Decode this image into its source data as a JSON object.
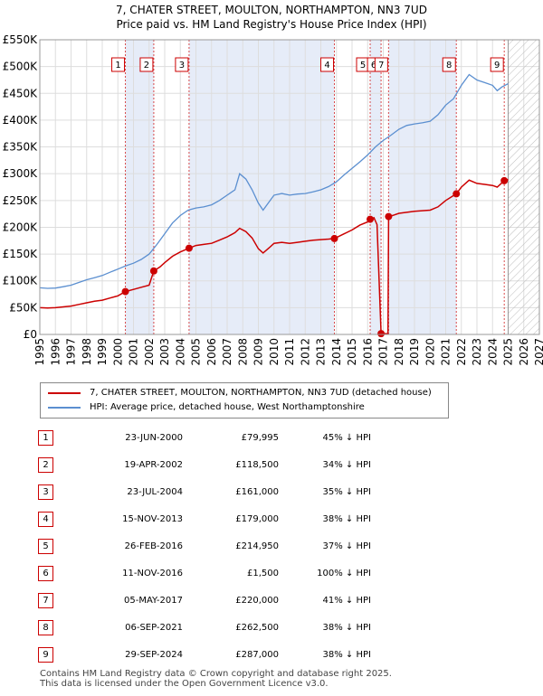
{
  "title": {
    "line1": "7, CHATER STREET, MOULTON, NORTHAMPTON, NN3 7UD",
    "line2": "Price paid vs. HM Land Registry's House Price Index (HPI)"
  },
  "colors": {
    "price": "#cc0000",
    "hpi": "#5b8fd0",
    "band": "#e6ecf8",
    "grid": "#dddddd"
  },
  "chart_data": {
    "type": "line",
    "ylim": [
      0,
      550000
    ],
    "xlim": [
      1995,
      2027
    ],
    "y_ticks": [
      0,
      50000,
      100000,
      150000,
      200000,
      250000,
      300000,
      350000,
      400000,
      450000,
      500000,
      550000
    ],
    "y_tick_labels": [
      "£0",
      "£50K",
      "£100K",
      "£150K",
      "£200K",
      "£250K",
      "£300K",
      "£350K",
      "£400K",
      "£450K",
      "£500K",
      "£550K"
    ],
    "x_ticks": [
      1995,
      1996,
      1997,
      1998,
      1999,
      2000,
      2001,
      2002,
      2003,
      2004,
      2005,
      2006,
      2007,
      2008,
      2009,
      2010,
      2011,
      2012,
      2013,
      2014,
      2015,
      2016,
      2017,
      2018,
      2019,
      2020,
      2021,
      2022,
      2023,
      2024,
      2025,
      2026,
      2027
    ],
    "projection_start": 2025.0,
    "shaded_periods": [
      [
        2000.48,
        2002.3
      ],
      [
        2004.56,
        2013.87
      ],
      [
        2016.16,
        2016.86
      ],
      [
        2017.34,
        2021.68
      ]
    ],
    "series": [
      {
        "name": "hpi",
        "points": [
          [
            1995.0,
            87000
          ],
          [
            1995.5,
            86000
          ],
          [
            1996.0,
            86500
          ],
          [
            1996.5,
            89000
          ],
          [
            1997.0,
            92000
          ],
          [
            1997.5,
            97000
          ],
          [
            1998.0,
            102000
          ],
          [
            1998.5,
            106000
          ],
          [
            1999.0,
            110000
          ],
          [
            1999.5,
            116000
          ],
          [
            2000.0,
            122000
          ],
          [
            2000.5,
            128000
          ],
          [
            2001.0,
            133000
          ],
          [
            2001.5,
            140000
          ],
          [
            2002.0,
            150000
          ],
          [
            2002.5,
            168000
          ],
          [
            2003.0,
            188000
          ],
          [
            2003.5,
            208000
          ],
          [
            2004.0,
            222000
          ],
          [
            2004.5,
            232000
          ],
          [
            2005.0,
            236000
          ],
          [
            2005.5,
            238000
          ],
          [
            2006.0,
            242000
          ],
          [
            2006.5,
            250000
          ],
          [
            2007.0,
            260000
          ],
          [
            2007.5,
            270000
          ],
          [
            2007.8,
            300000
          ],
          [
            2008.2,
            290000
          ],
          [
            2008.6,
            270000
          ],
          [
            2009.0,
            245000
          ],
          [
            2009.3,
            232000
          ],
          [
            2009.7,
            248000
          ],
          [
            2010.0,
            260000
          ],
          [
            2010.5,
            263000
          ],
          [
            2011.0,
            260000
          ],
          [
            2011.5,
            262000
          ],
          [
            2012.0,
            263000
          ],
          [
            2012.5,
            266000
          ],
          [
            2013.0,
            270000
          ],
          [
            2013.5,
            276000
          ],
          [
            2014.0,
            285000
          ],
          [
            2014.5,
            298000
          ],
          [
            2015.0,
            310000
          ],
          [
            2015.5,
            322000
          ],
          [
            2016.0,
            335000
          ],
          [
            2016.5,
            350000
          ],
          [
            2017.0,
            362000
          ],
          [
            2017.5,
            372000
          ],
          [
            2018.0,
            383000
          ],
          [
            2018.5,
            390000
          ],
          [
            2019.0,
            393000
          ],
          [
            2019.5,
            395000
          ],
          [
            2020.0,
            398000
          ],
          [
            2020.5,
            410000
          ],
          [
            2021.0,
            428000
          ],
          [
            2021.5,
            440000
          ],
          [
            2022.0,
            465000
          ],
          [
            2022.5,
            485000
          ],
          [
            2023.0,
            475000
          ],
          [
            2023.5,
            470000
          ],
          [
            2024.0,
            465000
          ],
          [
            2024.3,
            455000
          ],
          [
            2024.6,
            462000
          ],
          [
            2025.0,
            468000
          ]
        ]
      },
      {
        "name": "price",
        "points": [
          [
            1995.0,
            50000
          ],
          [
            1995.5,
            49500
          ],
          [
            1996.0,
            50000
          ],
          [
            1996.5,
            51500
          ],
          [
            1997.0,
            53000
          ],
          [
            1997.5,
            56000
          ],
          [
            1998.0,
            59000
          ],
          [
            1998.5,
            62000
          ],
          [
            1999.0,
            64000
          ],
          [
            1999.5,
            68000
          ],
          [
            2000.0,
            72000
          ],
          [
            2000.48,
            79995
          ],
          [
            2001.0,
            84000
          ],
          [
            2001.5,
            88000
          ],
          [
            2002.0,
            92000
          ],
          [
            2002.3,
            118500
          ],
          [
            2002.7,
            126000
          ],
          [
            2003.0,
            134000
          ],
          [
            2003.5,
            146000
          ],
          [
            2004.0,
            154000
          ],
          [
            2004.56,
            161000
          ],
          [
            2005.0,
            166000
          ],
          [
            2005.5,
            168000
          ],
          [
            2006.0,
            170000
          ],
          [
            2006.5,
            176000
          ],
          [
            2007.0,
            182000
          ],
          [
            2007.5,
            190000
          ],
          [
            2007.8,
            198000
          ],
          [
            2008.2,
            192000
          ],
          [
            2008.6,
            180000
          ],
          [
            2009.0,
            160000
          ],
          [
            2009.3,
            152000
          ],
          [
            2009.7,
            162000
          ],
          [
            2010.0,
            170000
          ],
          [
            2010.5,
            172000
          ],
          [
            2011.0,
            170000
          ],
          [
            2011.5,
            172000
          ],
          [
            2012.0,
            174000
          ],
          [
            2012.5,
            176000
          ],
          [
            2013.0,
            177000
          ],
          [
            2013.5,
            178000
          ],
          [
            2013.87,
            179000
          ],
          [
            2014.5,
            188000
          ],
          [
            2015.0,
            195000
          ],
          [
            2015.5,
            204000
          ],
          [
            2016.0,
            210000
          ],
          [
            2016.16,
            214950
          ],
          [
            2016.4,
            218000
          ],
          [
            2016.6,
            205000
          ],
          [
            2016.86,
            1500
          ],
          [
            2017.3,
            1500
          ],
          [
            2017.34,
            220000
          ],
          [
            2017.6,
            222000
          ],
          [
            2018.0,
            226000
          ],
          [
            2018.5,
            228000
          ],
          [
            2019.0,
            230000
          ],
          [
            2019.5,
            231000
          ],
          [
            2020.0,
            232000
          ],
          [
            2020.5,
            238000
          ],
          [
            2021.0,
            250000
          ],
          [
            2021.68,
            262500
          ],
          [
            2022.0,
            275000
          ],
          [
            2022.5,
            288000
          ],
          [
            2023.0,
            282000
          ],
          [
            2023.5,
            280000
          ],
          [
            2024.0,
            278000
          ],
          [
            2024.3,
            275000
          ],
          [
            2024.75,
            287000
          ],
          [
            2025.0,
            289000
          ]
        ]
      }
    ],
    "sales": [
      {
        "n": "1",
        "x": 2000.48,
        "price_value": 79995,
        "date": "23-JUN-2000",
        "price": "£79,995",
        "hpi": "45% ↓ HPI"
      },
      {
        "n": "2",
        "x": 2002.3,
        "price_value": 118500,
        "date": "19-APR-2002",
        "price": "£118,500",
        "hpi": "34% ↓ HPI"
      },
      {
        "n": "3",
        "x": 2004.56,
        "price_value": 161000,
        "date": "23-JUL-2004",
        "price": "£161,000",
        "hpi": "35% ↓ HPI"
      },
      {
        "n": "4",
        "x": 2013.87,
        "price_value": 179000,
        "date": "15-NOV-2013",
        "price": "£179,000",
        "hpi": "38% ↓ HPI"
      },
      {
        "n": "5",
        "x": 2016.16,
        "price_value": 214950,
        "date": "26-FEB-2016",
        "price": "£214,950",
        "hpi": "37% ↓ HPI"
      },
      {
        "n": "6",
        "x": 2016.86,
        "price_value": 1500,
        "date": "11-NOV-2016",
        "price": "£1,500",
        "hpi": "100% ↓ HPI"
      },
      {
        "n": "7",
        "x": 2017.34,
        "price_value": 220000,
        "date": "05-MAY-2017",
        "price": "£220,000",
        "hpi": "41% ↓ HPI"
      },
      {
        "n": "8",
        "x": 2021.68,
        "price_value": 262500,
        "date": "06-SEP-2021",
        "price": "£262,500",
        "hpi": "38% ↓ HPI"
      },
      {
        "n": "9",
        "x": 2024.75,
        "price_value": 287000,
        "date": "29-SEP-2024",
        "price": "£287,000",
        "hpi": "38% ↓ HPI"
      }
    ]
  },
  "legend": {
    "price_label": "7, CHATER STREET, MOULTON, NORTHAMPTON, NN3 7UD (detached house)",
    "hpi_label": "HPI: Average price, detached house, West Northamptonshire"
  },
  "footer": {
    "line1": "Contains HM Land Registry data © Crown copyright and database right 2025.",
    "line2": "This data is licensed under the Open Government Licence v3.0."
  }
}
